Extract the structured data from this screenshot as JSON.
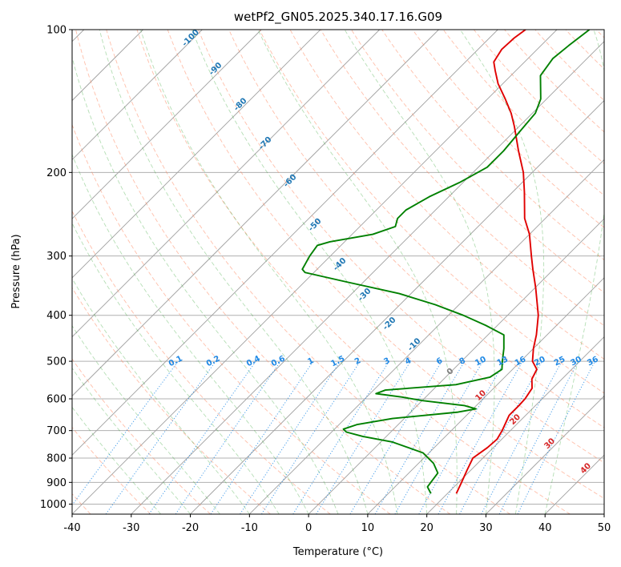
{
  "chart_data": {
    "type": "line",
    "title": "wetPf2_GN05.2025.340.17.16.G09",
    "xlabel": "Temperature (°C)",
    "ylabel": "Pressure (hPa)",
    "xlim": [
      -40,
      50
    ],
    "ylim": [
      1050,
      100
    ],
    "yscale": "log",
    "skew": "skew-T",
    "x_ticks": [
      "-40",
      "-30",
      "-20",
      "-10",
      "0",
      "10",
      "20",
      "30",
      "40",
      "50"
    ],
    "y_ticks": [
      "100",
      "200",
      "300",
      "400",
      "500",
      "600",
      "700",
      "800",
      "900",
      "1000"
    ],
    "grid": true,
    "series": [
      {
        "role": "temperature",
        "color": "#e00000",
        "points": [
          {
            "p": 950,
            "t": 21.5
          },
          {
            "p": 900,
            "t": 20.5
          },
          {
            "p": 850,
            "t": 19.4
          },
          {
            "p": 800,
            "t": 18.3
          },
          {
            "p": 760,
            "t": 19.0
          },
          {
            "p": 730,
            "t": 19.2
          },
          {
            "p": 700,
            "t": 18.6
          },
          {
            "p": 650,
            "t": 17.2
          },
          {
            "p": 620,
            "t": 17.2
          },
          {
            "p": 600,
            "t": 17.1
          },
          {
            "p": 570,
            "t": 16.5
          },
          {
            "p": 545,
            "t": 14.9
          },
          {
            "p": 520,
            "t": 14.1
          },
          {
            "p": 500,
            "t": 12.0
          },
          {
            "p": 470,
            "t": 10.0
          },
          {
            "p": 440,
            "t": 8.2
          },
          {
            "p": 400,
            "t": 5.2
          },
          {
            "p": 350,
            "t": 0.1
          },
          {
            "p": 320,
            "t": -3.5
          },
          {
            "p": 300,
            "t": -6.0
          },
          {
            "p": 270,
            "t": -10.0
          },
          {
            "p": 250,
            "t": -13.5
          },
          {
            "p": 220,
            "t": -18.0
          },
          {
            "p": 200,
            "t": -21.5
          },
          {
            "p": 180,
            "t": -26.0
          },
          {
            "p": 160,
            "t": -30.8
          },
          {
            "p": 150,
            "t": -33.6
          },
          {
            "p": 140,
            "t": -37.0
          },
          {
            "p": 130,
            "t": -40.8
          },
          {
            "p": 122,
            "t": -43.5
          },
          {
            "p": 117,
            "t": -45.2
          },
          {
            "p": 110,
            "t": -46.0
          },
          {
            "p": 104,
            "t": -45.8
          },
          {
            "p": 100,
            "t": -45.3
          }
        ]
      },
      {
        "role": "dewpoint",
        "color": "#008000",
        "points": [
          {
            "p": 950,
            "t": 17.2
          },
          {
            "p": 920,
            "t": 15.5
          },
          {
            "p": 900,
            "t": 15.3
          },
          {
            "p": 860,
            "t": 14.9
          },
          {
            "p": 820,
            "t": 12.5
          },
          {
            "p": 780,
            "t": 9.0
          },
          {
            "p": 740,
            "t": 2.0
          },
          {
            "p": 720,
            "t": -4.0
          },
          {
            "p": 705,
            "t": -7.5
          },
          {
            "p": 695,
            "t": -8.5
          },
          {
            "p": 680,
            "t": -7.0
          },
          {
            "p": 660,
            "t": -2.0
          },
          {
            "p": 640,
            "t": 8.0
          },
          {
            "p": 630,
            "t": 10.5
          },
          {
            "p": 620,
            "t": 8.0
          },
          {
            "p": 605,
            "t": 0.0
          },
          {
            "p": 595,
            "t": -4.0
          },
          {
            "p": 585,
            "t": -9.0
          },
          {
            "p": 575,
            "t": -8.0
          },
          {
            "p": 560,
            "t": 3.0
          },
          {
            "p": 540,
            "t": 7.5
          },
          {
            "p": 520,
            "t": 8.2
          },
          {
            "p": 500,
            "t": 6.9
          },
          {
            "p": 470,
            "t": 5.0
          },
          {
            "p": 440,
            "t": 2.7
          },
          {
            "p": 420,
            "t": -2.0
          },
          {
            "p": 400,
            "t": -7.5
          },
          {
            "p": 380,
            "t": -14.0
          },
          {
            "p": 360,
            "t": -22.0
          },
          {
            "p": 340,
            "t": -33.0
          },
          {
            "p": 325,
            "t": -41.5
          },
          {
            "p": 320,
            "t": -42.5
          },
          {
            "p": 300,
            "t": -43.5
          },
          {
            "p": 285,
            "t": -44.0
          },
          {
            "p": 280,
            "t": -42.5
          },
          {
            "p": 270,
            "t": -36.5
          },
          {
            "p": 260,
            "t": -34.0
          },
          {
            "p": 250,
            "t": -35.0
          },
          {
            "p": 240,
            "t": -35.0
          },
          {
            "p": 225,
            "t": -33.3
          },
          {
            "p": 210,
            "t": -30.6
          },
          {
            "p": 195,
            "t": -28.5
          },
          {
            "p": 180,
            "t": -28.5
          },
          {
            "p": 165,
            "t": -29.0
          },
          {
            "p": 150,
            "t": -29.5
          },
          {
            "p": 140,
            "t": -31.0
          },
          {
            "p": 125,
            "t": -35.0
          },
          {
            "p": 115,
            "t": -35.8
          },
          {
            "p": 108,
            "t": -35.3
          },
          {
            "p": 100,
            "t": -34.5
          }
        ]
      }
    ],
    "dry_adiabats": {
      "color": "#ff8a65",
      "labeled_theta_C": [
        "0",
        "10",
        "20",
        "30",
        "40"
      ],
      "label_color_0": "#808080",
      "label_color": "#d62728",
      "theta_K": [
        233,
        243,
        253,
        263,
        273,
        283,
        293,
        303,
        313,
        323,
        333,
        343,
        353,
        363,
        373,
        383,
        393,
        403,
        413,
        423,
        433,
        443,
        453,
        463,
        473
      ]
    },
    "moist_adiabats": {
      "color": "#2ca02c",
      "start_temps_C": [
        -25,
        -20,
        -15,
        -10,
        -5,
        0,
        5,
        10,
        15,
        20,
        25,
        30,
        35,
        40
      ]
    },
    "isohumes": {
      "color": "#1e88e5",
      "labels": [
        "0.1",
        "0.2",
        "0.4",
        "0.6",
        "1",
        "1.5",
        "2",
        "3",
        "4",
        "6",
        "8",
        "10",
        "13",
        "16",
        "20",
        "25",
        "30",
        "36"
      ],
      "values_g_per_kg": [
        0.1,
        0.2,
        0.4,
        0.6,
        1,
        1.5,
        2,
        3,
        4,
        6,
        8,
        10,
        13,
        16,
        20,
        25,
        30,
        36
      ]
    },
    "frost_point_isotherms": {
      "color": "#1f77b4",
      "labels": [
        "-100",
        "-90",
        "-80",
        "-70",
        "-60",
        "-50",
        "-40",
        "-30",
        "-20",
        "-10"
      ],
      "values_C": [
        -100,
        -90,
        -80,
        -70,
        -60,
        -50,
        -40,
        -30,
        -20,
        -10
      ]
    }
  }
}
